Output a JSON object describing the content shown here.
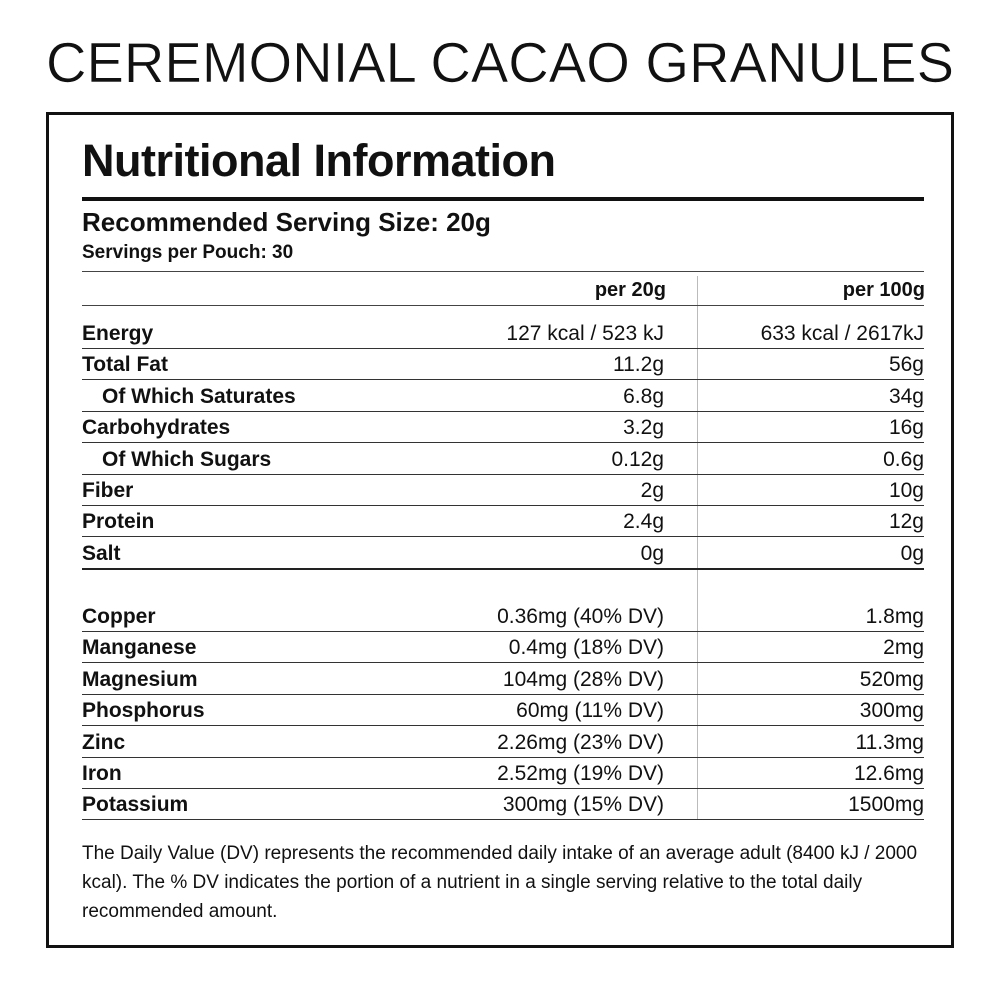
{
  "brand_title": "CEREMONIAL CACAO GRANULES",
  "panel": {
    "title": "Nutritional Information",
    "serving_size": "Recommended Serving Size: 20g",
    "servings_per_pouch": "Servings per Pouch: 30",
    "column_headers": [
      "per 20g",
      "per 100g"
    ],
    "nutrients": [
      {
        "label": "Energy",
        "per_serving": "127 kcal / 523 kJ",
        "per_100g": "633 kcal / 2617kJ",
        "indent": false
      },
      {
        "label": "Total Fat",
        "per_serving": "11.2g",
        "per_100g": "56g",
        "indent": false
      },
      {
        "label": "Of Which Saturates",
        "per_serving": "6.8g",
        "per_100g": "34g",
        "indent": true
      },
      {
        "label": "Carbohydrates",
        "per_serving": "3.2g",
        "per_100g": "16g",
        "indent": false
      },
      {
        "label": "Of Which Sugars",
        "per_serving": "0.12g",
        "per_100g": "0.6g",
        "indent": true
      },
      {
        "label": "Fiber",
        "per_serving": "2g",
        "per_100g": "10g",
        "indent": false
      },
      {
        "label": "Protein",
        "per_serving": "2.4g",
        "per_100g": "12g",
        "indent": false
      },
      {
        "label": "Salt",
        "per_serving": "0g",
        "per_100g": "0g",
        "indent": false
      }
    ],
    "minerals": [
      {
        "label": "Copper",
        "per_serving": "0.36mg (40% DV)",
        "per_100g": "1.8mg"
      },
      {
        "label": "Manganese",
        "per_serving": "0.4mg (18% DV)",
        "per_100g": "2mg"
      },
      {
        "label": "Magnesium",
        "per_serving": "104mg (28% DV)",
        "per_100g": "520mg"
      },
      {
        "label": "Phosphorus",
        "per_serving": "60mg (11% DV)",
        "per_100g": "300mg"
      },
      {
        "label": "Zinc",
        "per_serving": "2.26mg (23% DV)",
        "per_100g": "11.3mg"
      },
      {
        "label": "Iron",
        "per_serving": "2.52mg (19% DV)",
        "per_100g": "12.6mg"
      },
      {
        "label": "Potassium",
        "per_serving": "300mg (15% DV)",
        "per_100g": "1500mg"
      }
    ],
    "footnote": "The Daily Value (DV) represents the recommended daily intake of an average adult (8400 kJ / 2000 kcal). The % DV indicates the portion of a nutrient in a single serving relative to the total daily recommended amount."
  }
}
